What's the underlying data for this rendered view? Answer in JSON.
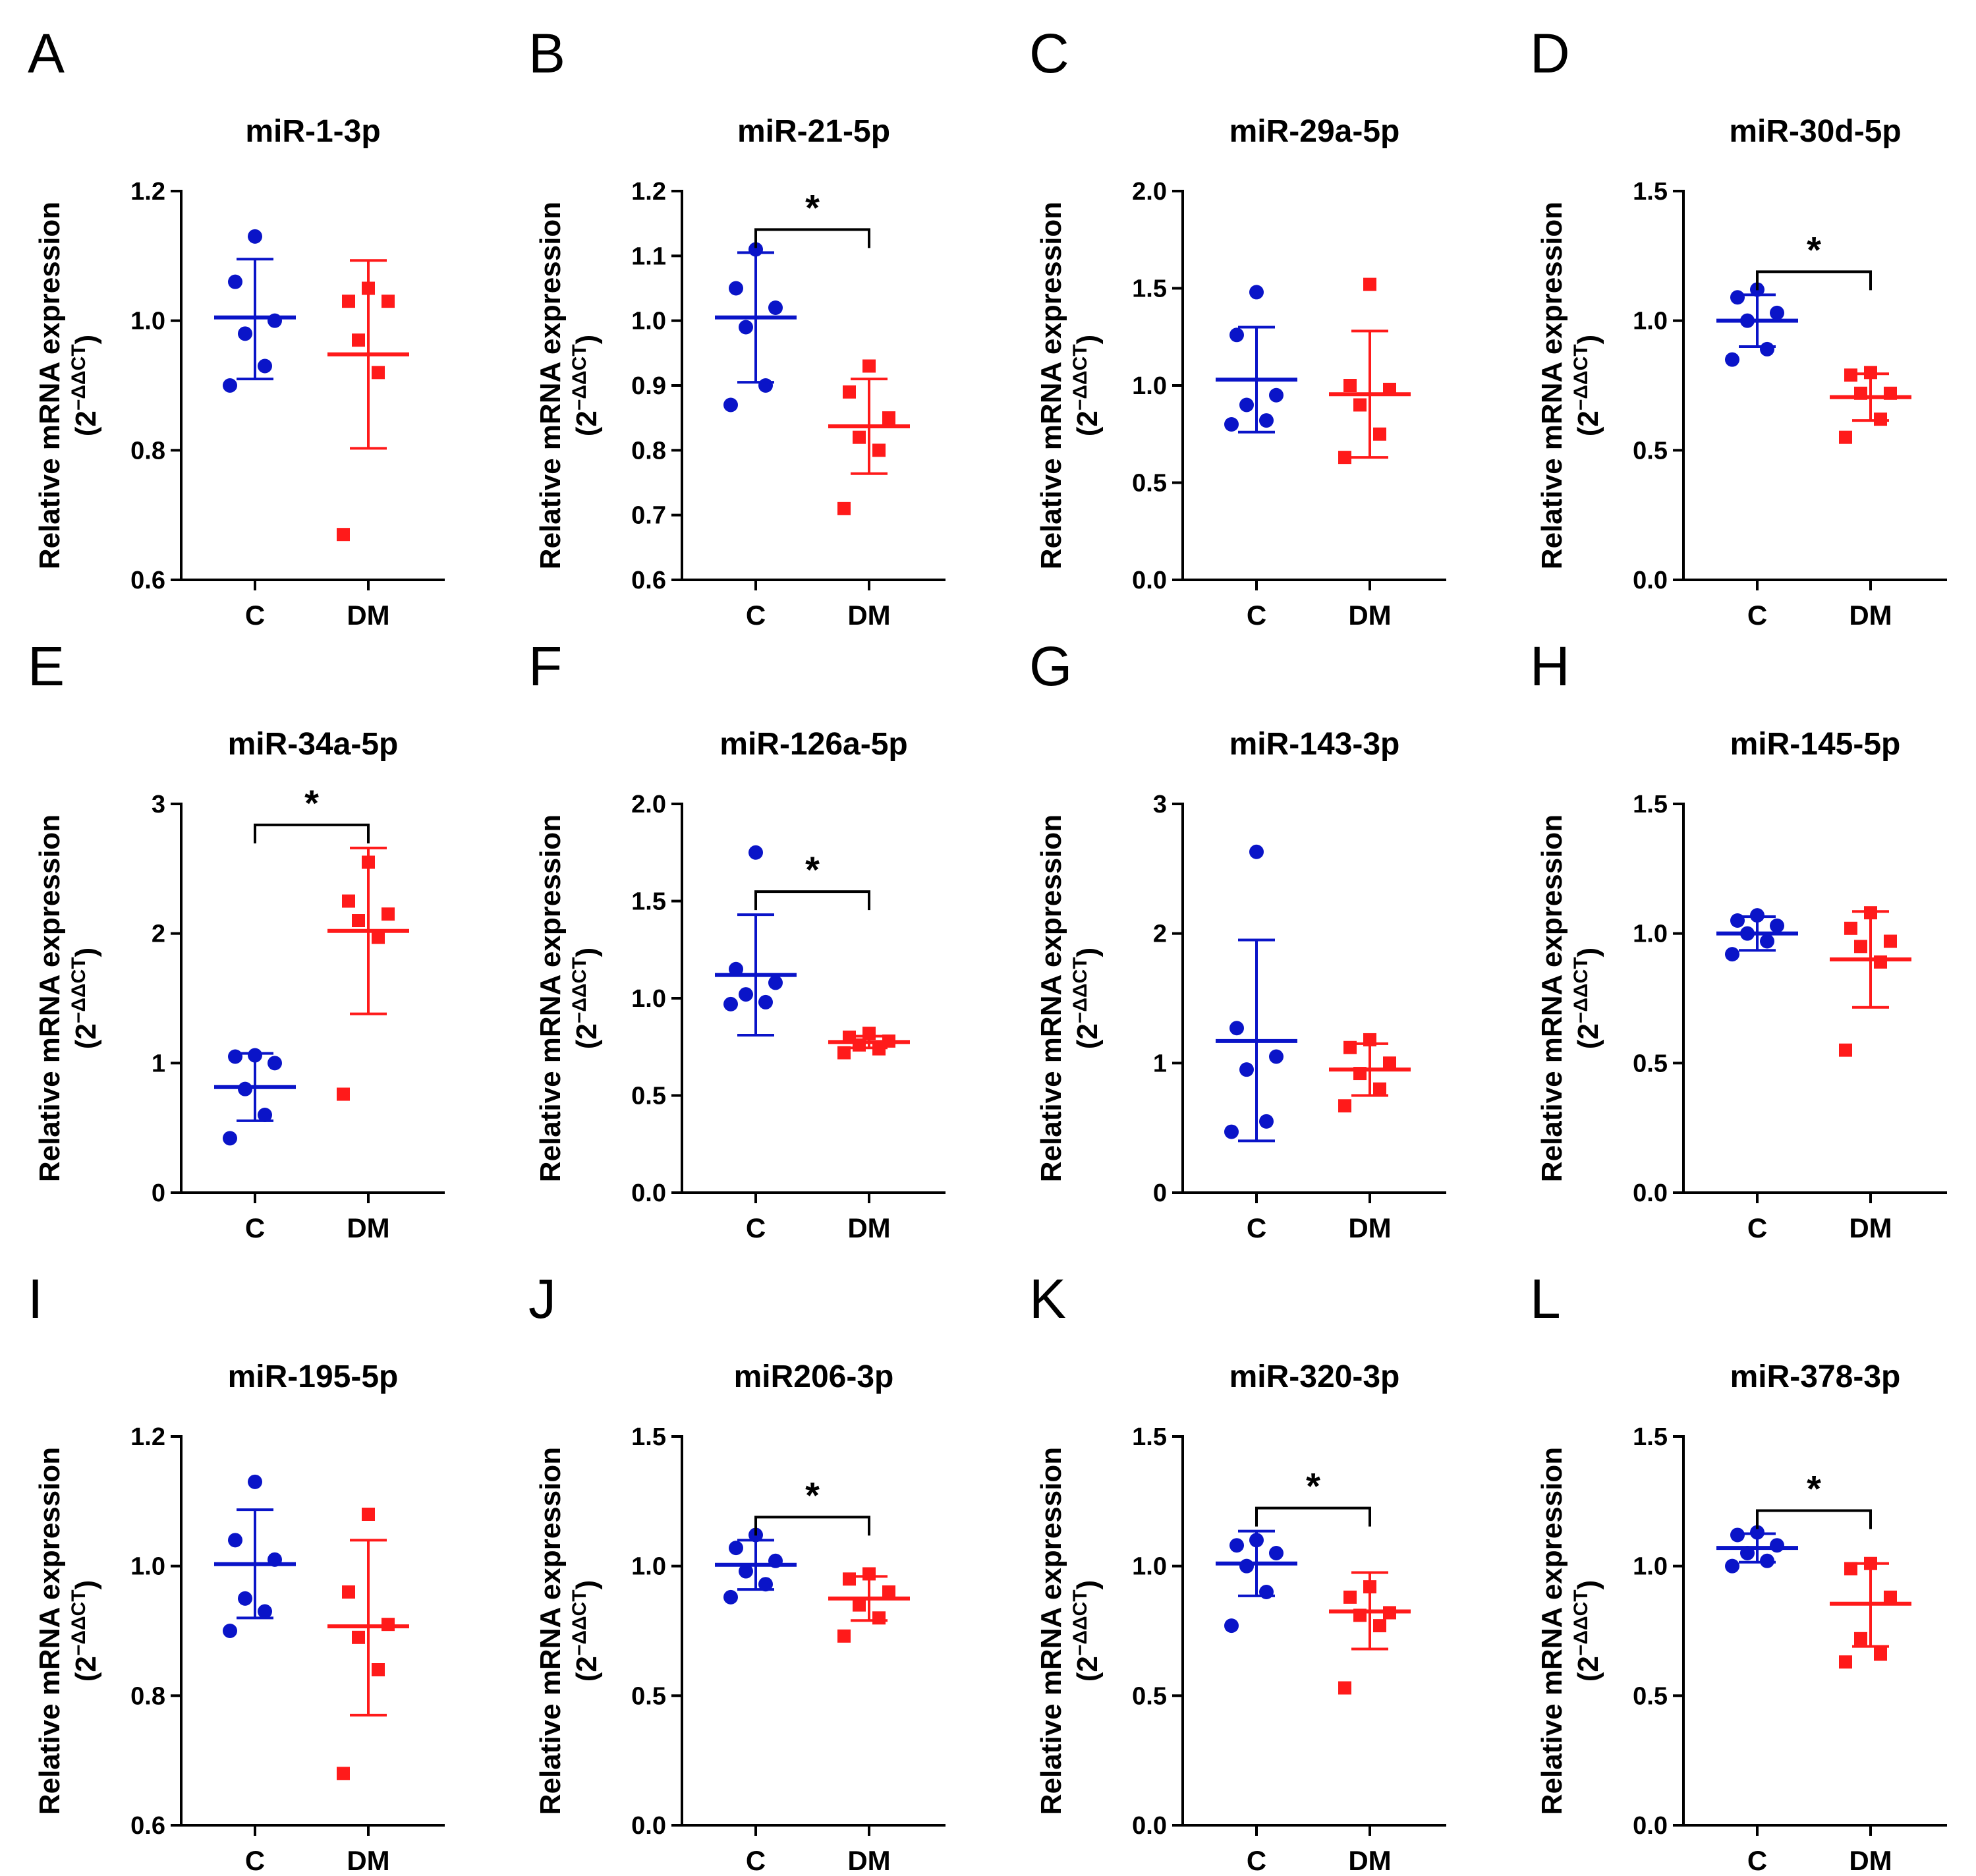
{
  "colors": {
    "control": "#0a14c8",
    "dm": "#ff1a1a",
    "axis": "#000000"
  },
  "chart_data": [
    {
      "label": "A",
      "type": "scatter",
      "title": "miR-1-3p",
      "ylabel": "Relative mRNA expression",
      "ylabel2": "(2^-ΔΔCT)",
      "ylabel2_base": "(2",
      "ylabel2_exp": "−ΔΔCT",
      "ylabel2_close": ")",
      "ylim": [
        0.6,
        1.2
      ],
      "yticks": [
        0.6,
        0.8,
        1.0,
        1.2
      ],
      "ytick_labels": [
        "0.6",
        "0.8",
        "1.0",
        "1.2"
      ],
      "categories": [
        "C",
        "DM"
      ],
      "significance": "",
      "series": [
        {
          "name": "C",
          "marker": "circle",
          "points": [
            1.13,
            1.06,
            1.0,
            0.98,
            0.93,
            0.9
          ],
          "mean": 1.005,
          "sd_lower": 0.91,
          "sd_upper": 1.095
        },
        {
          "name": "DM",
          "marker": "square",
          "points": [
            1.05,
            1.03,
            1.03,
            0.97,
            0.92,
            0.67
          ],
          "mean": 0.948,
          "sd_lower": 0.803,
          "sd_upper": 1.093
        }
      ]
    },
    {
      "label": "B",
      "type": "scatter",
      "title": "miR-21-5p",
      "ylabel": "Relative mRNA expression",
      "ylabel2": "(2^-ΔΔCT)",
      "ylabel2_base": "(2",
      "ylabel2_exp": "−ΔΔCT",
      "ylabel2_close": ")",
      "ylim": [
        0.6,
        1.2
      ],
      "yticks": [
        0.6,
        0.7,
        0.8,
        0.9,
        1.0,
        1.1,
        1.2
      ],
      "ytick_labels": [
        "0.6",
        "0.7",
        "0.8",
        "0.9",
        "1.0",
        "1.1",
        "1.2"
      ],
      "categories": [
        "C",
        "DM"
      ],
      "significance": "*",
      "series": [
        {
          "name": "C",
          "marker": "circle",
          "points": [
            1.11,
            1.05,
            1.02,
            0.99,
            0.9,
            0.87
          ],
          "mean": 1.005,
          "sd_lower": 0.905,
          "sd_upper": 1.105
        },
        {
          "name": "DM",
          "marker": "square",
          "points": [
            0.93,
            0.89,
            0.85,
            0.82,
            0.8,
            0.71
          ],
          "mean": 0.837,
          "sd_lower": 0.764,
          "sd_upper": 0.91
        }
      ]
    },
    {
      "label": "C",
      "type": "scatter",
      "title": "miR-29a-5p",
      "ylabel": "Relative mRNA expression",
      "ylabel2": "(2^-ΔΔCT)",
      "ylabel2_base": "(2",
      "ylabel2_exp": "−ΔΔCT",
      "ylabel2_close": ")",
      "ylim": [
        0,
        2
      ],
      "yticks": [
        0,
        0.5,
        1.0,
        1.5,
        2.0
      ],
      "ytick_labels": [
        "0.0",
        "0.5",
        "1.0",
        "1.5",
        "2.0"
      ],
      "categories": [
        "C",
        "DM"
      ],
      "significance": "",
      "series": [
        {
          "name": "C",
          "marker": "circle",
          "points": [
            1.48,
            1.26,
            0.95,
            0.9,
            0.82,
            0.8
          ],
          "mean": 1.03,
          "sd_lower": 0.76,
          "sd_upper": 1.3
        },
        {
          "name": "DM",
          "marker": "square",
          "points": [
            1.52,
            1.0,
            0.98,
            0.9,
            0.75,
            0.63
          ],
          "mean": 0.955,
          "sd_lower": 0.63,
          "sd_upper": 1.28
        }
      ]
    },
    {
      "label": "D",
      "type": "scatter",
      "title": "miR-30d-5p",
      "ylabel": "Relative mRNA expression",
      "ylabel2": "(2^-ΔΔCT)",
      "ylabel2_base": "(2",
      "ylabel2_exp": "−ΔΔCT",
      "ylabel2_close": ")",
      "ylim": [
        0,
        1.5
      ],
      "yticks": [
        0,
        0.5,
        1.0,
        1.5
      ],
      "ytick_labels": [
        "0.0",
        "0.5",
        "1.0",
        "1.5"
      ],
      "categories": [
        "C",
        "DM"
      ],
      "significance": "*",
      "series": [
        {
          "name": "C",
          "marker": "circle",
          "points": [
            1.12,
            1.09,
            1.03,
            1.0,
            0.89,
            0.85
          ],
          "mean": 1.0,
          "sd_lower": 0.9,
          "sd_upper": 1.1
        },
        {
          "name": "DM",
          "marker": "square",
          "points": [
            0.8,
            0.79,
            0.72,
            0.72,
            0.62,
            0.55
          ],
          "mean": 0.705,
          "sd_lower": 0.615,
          "sd_upper": 0.795
        }
      ]
    },
    {
      "label": "E",
      "type": "scatter",
      "title": "miR-34a-5p",
      "ylabel": "Relative mRNA expression",
      "ylabel2": "(2^-ΔΔCT)",
      "ylabel2_base": "(2",
      "ylabel2_exp": "−ΔΔCT",
      "ylabel2_close": ")",
      "ylim": [
        0,
        3
      ],
      "yticks": [
        0,
        1,
        2,
        3
      ],
      "ytick_labels": [
        "0",
        "1",
        "2",
        "3"
      ],
      "categories": [
        "C",
        "DM"
      ],
      "significance": "*",
      "series": [
        {
          "name": "C",
          "marker": "circle",
          "points": [
            1.06,
            1.05,
            1.0,
            0.8,
            0.6,
            0.42
          ],
          "mean": 0.815,
          "sd_lower": 0.555,
          "sd_upper": 1.075
        },
        {
          "name": "DM",
          "marker": "square",
          "points": [
            2.55,
            2.25,
            2.15,
            2.1,
            1.97,
            0.76
          ],
          "mean": 2.02,
          "sd_lower": 1.38,
          "sd_upper": 2.66
        }
      ]
    },
    {
      "label": "F",
      "type": "scatter",
      "title": "miR-126a-5p",
      "ylabel": "Relative mRNA expression",
      "ylabel2": "(2^-ΔΔCT)",
      "ylabel2_base": "(2",
      "ylabel2_exp": "−ΔΔCT",
      "ylabel2_close": ")",
      "ylim": [
        0,
        2
      ],
      "yticks": [
        0,
        0.5,
        1.0,
        1.5,
        2.0
      ],
      "ytick_labels": [
        "0.0",
        "0.5",
        "1.0",
        "1.5",
        "2.0"
      ],
      "categories": [
        "C",
        "DM"
      ],
      "significance": "*",
      "series": [
        {
          "name": "C",
          "marker": "circle",
          "points": [
            1.75,
            1.15,
            1.08,
            1.02,
            0.98,
            0.97
          ],
          "mean": 1.12,
          "sd_lower": 0.81,
          "sd_upper": 1.43
        },
        {
          "name": "DM",
          "marker": "square",
          "points": [
            0.82,
            0.8,
            0.78,
            0.76,
            0.74,
            0.72
          ],
          "mean": 0.775,
          "sd_lower": 0.745,
          "sd_upper": 0.805
        }
      ]
    },
    {
      "label": "G",
      "type": "scatter",
      "title": "miR-143-3p",
      "ylabel": "Relative mRNA expression",
      "ylabel2": "(2^-ΔΔCT)",
      "ylabel2_base": "(2",
      "ylabel2_exp": "−ΔΔCT",
      "ylabel2_close": ")",
      "ylim": [
        0,
        3
      ],
      "yticks": [
        0,
        1,
        2,
        3
      ],
      "ytick_labels": [
        "0",
        "1",
        "2",
        "3"
      ],
      "categories": [
        "C",
        "DM"
      ],
      "significance": "",
      "series": [
        {
          "name": "C",
          "marker": "circle",
          "points": [
            2.63,
            1.27,
            1.05,
            0.95,
            0.55,
            0.47
          ],
          "mean": 1.17,
          "sd_lower": 0.4,
          "sd_upper": 1.95
        },
        {
          "name": "DM",
          "marker": "square",
          "points": [
            1.18,
            1.12,
            1.0,
            0.92,
            0.8,
            0.67
          ],
          "mean": 0.95,
          "sd_lower": 0.75,
          "sd_upper": 1.15
        }
      ]
    },
    {
      "label": "H",
      "type": "scatter",
      "title": "miR-145-5p",
      "ylabel": "Relative mRNA expression",
      "ylabel2": "(2^-ΔΔCT)",
      "ylabel2_base": "(2",
      "ylabel2_exp": "−ΔΔCT",
      "ylabel2_close": ")",
      "ylim": [
        0,
        1.5
      ],
      "yticks": [
        0,
        0.5,
        1.0,
        1.5
      ],
      "ytick_labels": [
        "0.0",
        "0.5",
        "1.0",
        "1.5"
      ],
      "categories": [
        "C",
        "DM"
      ],
      "significance": "",
      "series": [
        {
          "name": "C",
          "marker": "circle",
          "points": [
            1.07,
            1.05,
            1.03,
            1.0,
            0.97,
            0.92
          ],
          "mean": 1.0,
          "sd_lower": 0.935,
          "sd_upper": 1.065
        },
        {
          "name": "DM",
          "marker": "square",
          "points": [
            1.08,
            1.02,
            0.97,
            0.95,
            0.89,
            0.55
          ],
          "mean": 0.9,
          "sd_lower": 0.715,
          "sd_upper": 1.085
        }
      ]
    },
    {
      "label": "I",
      "type": "scatter",
      "title": "miR-195-5p",
      "ylabel": "Relative mRNA expression",
      "ylabel2": "(2^-ΔΔCT)",
      "ylabel2_base": "(2",
      "ylabel2_exp": "−ΔΔCT",
      "ylabel2_close": ")",
      "ylim": [
        0.6,
        1.2
      ],
      "yticks": [
        0.6,
        0.8,
        1.0,
        1.2
      ],
      "ytick_labels": [
        "0.6",
        "0.8",
        "1.0",
        "1.2"
      ],
      "categories": [
        "C",
        "DM"
      ],
      "significance": "",
      "series": [
        {
          "name": "C",
          "marker": "circle",
          "points": [
            1.13,
            1.04,
            1.01,
            0.95,
            0.93,
            0.9
          ],
          "mean": 1.003,
          "sd_lower": 0.92,
          "sd_upper": 1.087
        },
        {
          "name": "DM",
          "marker": "square",
          "points": [
            1.08,
            0.96,
            0.91,
            0.89,
            0.84,
            0.68
          ],
          "mean": 0.907,
          "sd_lower": 0.77,
          "sd_upper": 1.04
        }
      ]
    },
    {
      "label": "J",
      "type": "scatter",
      "title": "miR206-3p",
      "ylabel": "Relative mRNA expression",
      "ylabel2": "(2^-ΔΔCT)",
      "ylabel2_base": "(2",
      "ylabel2_exp": "−ΔΔCT",
      "ylabel2_close": ")",
      "ylim": [
        0,
        1.5
      ],
      "yticks": [
        0,
        0.5,
        1.0,
        1.5
      ],
      "ytick_labels": [
        "0.0",
        "0.5",
        "1.0",
        "1.5"
      ],
      "categories": [
        "C",
        "DM"
      ],
      "significance": "*",
      "series": [
        {
          "name": "C",
          "marker": "circle",
          "points": [
            1.12,
            1.07,
            1.02,
            0.98,
            0.93,
            0.88
          ],
          "mean": 1.005,
          "sd_lower": 0.91,
          "sd_upper": 1.1
        },
        {
          "name": "DM",
          "marker": "square",
          "points": [
            0.97,
            0.95,
            0.9,
            0.85,
            0.8,
            0.73
          ],
          "mean": 0.875,
          "sd_lower": 0.79,
          "sd_upper": 0.96
        }
      ]
    },
    {
      "label": "K",
      "type": "scatter",
      "title": "miR-320-3p",
      "ylabel": "Relative mRNA expression",
      "ylabel2": "(2^-ΔΔCT)",
      "ylabel2_base": "(2",
      "ylabel2_exp": "−ΔΔCT",
      "ylabel2_close": ")",
      "ylim": [
        0,
        1.5
      ],
      "yticks": [
        0,
        0.5,
        1.0,
        1.5
      ],
      "ytick_labels": [
        "0.0",
        "0.5",
        "1.0",
        "1.5"
      ],
      "categories": [
        "C",
        "DM"
      ],
      "significance": "*",
      "series": [
        {
          "name": "C",
          "marker": "circle",
          "points": [
            1.1,
            1.08,
            1.05,
            1.0,
            0.9,
            0.77
          ],
          "mean": 1.01,
          "sd_lower": 0.885,
          "sd_upper": 1.135
        },
        {
          "name": "DM",
          "marker": "square",
          "points": [
            0.92,
            0.88,
            0.82,
            0.81,
            0.77,
            0.53
          ],
          "mean": 0.825,
          "sd_lower": 0.68,
          "sd_upper": 0.975
        }
      ]
    },
    {
      "label": "L",
      "type": "scatter",
      "title": "miR-378-3p",
      "ylabel": "Relative mRNA expression",
      "ylabel2": "(2^-ΔΔCT)",
      "ylabel2_base": "(2",
      "ylabel2_exp": "−ΔΔCT",
      "ylabel2_close": ")",
      "ylim": [
        0,
        1.5
      ],
      "yticks": [
        0,
        0.5,
        1.0,
        1.5
      ],
      "ytick_labels": [
        "0.0",
        "0.5",
        "1.0",
        "1.5"
      ],
      "categories": [
        "C",
        "DM"
      ],
      "significance": "*",
      "series": [
        {
          "name": "C",
          "marker": "circle",
          "points": [
            1.13,
            1.12,
            1.08,
            1.05,
            1.02,
            1.0
          ],
          "mean": 1.07,
          "sd_lower": 1.015,
          "sd_upper": 1.125
        },
        {
          "name": "DM",
          "marker": "square",
          "points": [
            1.01,
            0.99,
            0.88,
            0.72,
            0.66,
            0.63
          ],
          "mean": 0.855,
          "sd_lower": 0.69,
          "sd_upper": 1.01
        }
      ]
    }
  ]
}
